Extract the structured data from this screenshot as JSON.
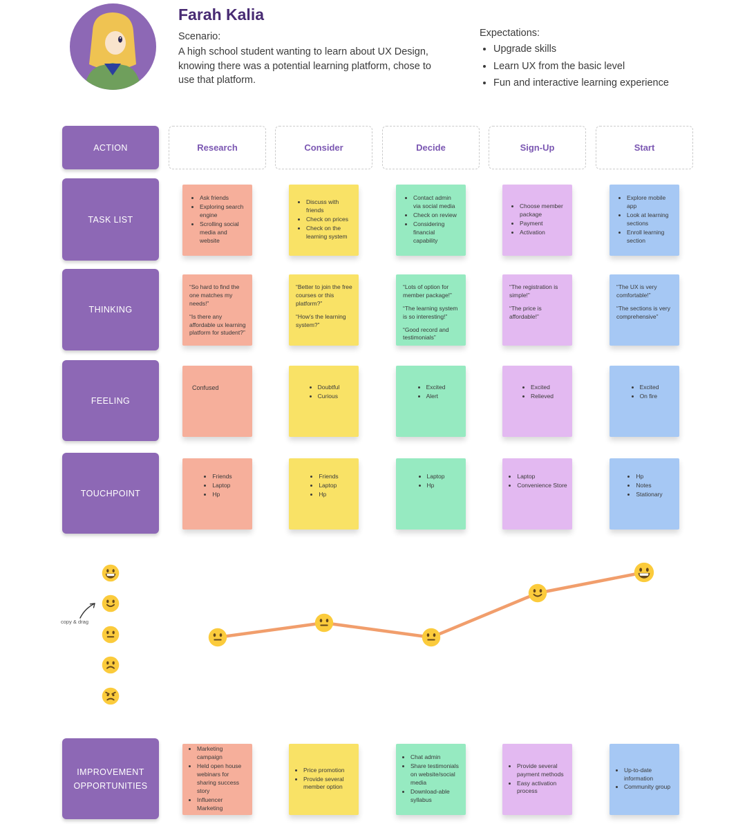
{
  "persona": {
    "name": "Farah Kalia",
    "scenario_label": "Scenario:",
    "scenario_text": "A high school student wanting to learn about UX Design, knowing there was a potential learning platform, chose to use that platform.",
    "expectations_label": "Expectations:",
    "expectations": [
      "Upgrade skills",
      "Learn UX from the basic level",
      "Fun and interactive learning experience"
    ]
  },
  "stages": {
    "header_label": "ACTION",
    "labels": [
      "Research",
      "Consider",
      "Decide",
      "Sign-Up",
      "Start"
    ]
  },
  "rows": [
    {
      "label": "TASK LIST",
      "notes": [
        {
          "bullets": [
            "Ask friends",
            "Exploring search engine",
            "Scrolling social media and website"
          ]
        },
        {
          "bullets": [
            "Discuss with friends",
            "Check on prices",
            "Check on the learning system"
          ]
        },
        {
          "bullets": [
            "Contact admin via social media",
            "Check on review",
            "Considering financial capability"
          ]
        },
        {
          "bullets": [
            "Choose member package",
            "Payment",
            "Activation"
          ]
        },
        {
          "bullets": [
            "Explore mobile app",
            "Look at learning sections",
            "Enroll learning section"
          ]
        }
      ]
    },
    {
      "label": "THINKING",
      "notes": [
        {
          "quotes": [
            "“So hard to find the one matches my needs!”",
            "“Is there any affordable ux learning platform for student?”"
          ]
        },
        {
          "quotes": [
            "“Better to join the free courses or this platform?”",
            "“How’s the learning system?”"
          ]
        },
        {
          "quotes": [
            "“Lots of option for member package!”",
            "“The learning system is so interesting!”",
            "“Good record and testimonials”"
          ]
        },
        {
          "quotes": [
            "“The registration is simple!”",
            "“The price is affordable!”"
          ]
        },
        {
          "quotes": [
            "“The UX is very comfortable!”",
            "“The sections is very comprehensive”"
          ]
        }
      ]
    },
    {
      "label": "FEELING",
      "notes": [
        {
          "text": "Confused"
        },
        {
          "bullets": [
            "Doubtful",
            "Curious"
          ]
        },
        {
          "bullets": [
            "Excited",
            "Alert"
          ]
        },
        {
          "bullets": [
            "Excited",
            "Relieved"
          ]
        },
        {
          "bullets": [
            "Excited",
            "On fire"
          ]
        }
      ]
    },
    {
      "label": "TOUCHPOINT",
      "notes": [
        {
          "bullets": [
            "Friends",
            "Laptop",
            "Hp"
          ]
        },
        {
          "bullets": [
            "Friends",
            "Laptop",
            "Hp"
          ]
        },
        {
          "bullets": [
            "Laptop",
            "Hp"
          ]
        },
        {
          "bullets": [
            "Laptop",
            "Convenience Store"
          ]
        },
        {
          "bullets": [
            "Hp",
            "Notes",
            "Stationary"
          ]
        }
      ]
    },
    {
      "label": "IMPROVEMENT OPPORTUNITIES",
      "notes": [
        {
          "bullets": [
            "Marketing campaign",
            "Held open house webinars for sharing success story",
            "Influencer Marketing"
          ]
        },
        {
          "bullets": [
            "Price promotion",
            "Provide several member option"
          ]
        },
        {
          "bullets": [
            "Chat admin",
            "Share testimonials on website/social media",
            "Download-able syllabus"
          ]
        },
        {
          "bullets": [
            "Provide several payment methods",
            "Easy activation process"
          ]
        },
        {
          "bullets": [
            "Up-to-date information",
            "Community group"
          ]
        }
      ]
    }
  ],
  "emotion_graph": {
    "palette_hint": "copy & drag",
    "palette": [
      "grin",
      "slight-smile",
      "neutral",
      "frown",
      "angry"
    ],
    "points": [
      {
        "stage": "Research",
        "emoji": "neutral"
      },
      {
        "stage": "Consider",
        "emoji": "neutral"
      },
      {
        "stage": "Decide",
        "emoji": "neutral"
      },
      {
        "stage": "Sign-Up",
        "emoji": "slight-smile"
      },
      {
        "stage": "Start",
        "emoji": "grin"
      }
    ],
    "line_color": "#F19E6C"
  },
  "colors": {
    "row_header_bg": "#8D68B5",
    "row_header_text": "#FFFFFF",
    "stage_label_text": "#7B57B2",
    "persona_name_text": "#482B73",
    "note_colors": [
      "#F6AF9B",
      "#F9E266",
      "#96EAC1",
      "#E3B9F1",
      "#A6C8F4"
    ],
    "graph_line": "#F19E6C",
    "emoji_yellow": "#FBCB3C"
  }
}
